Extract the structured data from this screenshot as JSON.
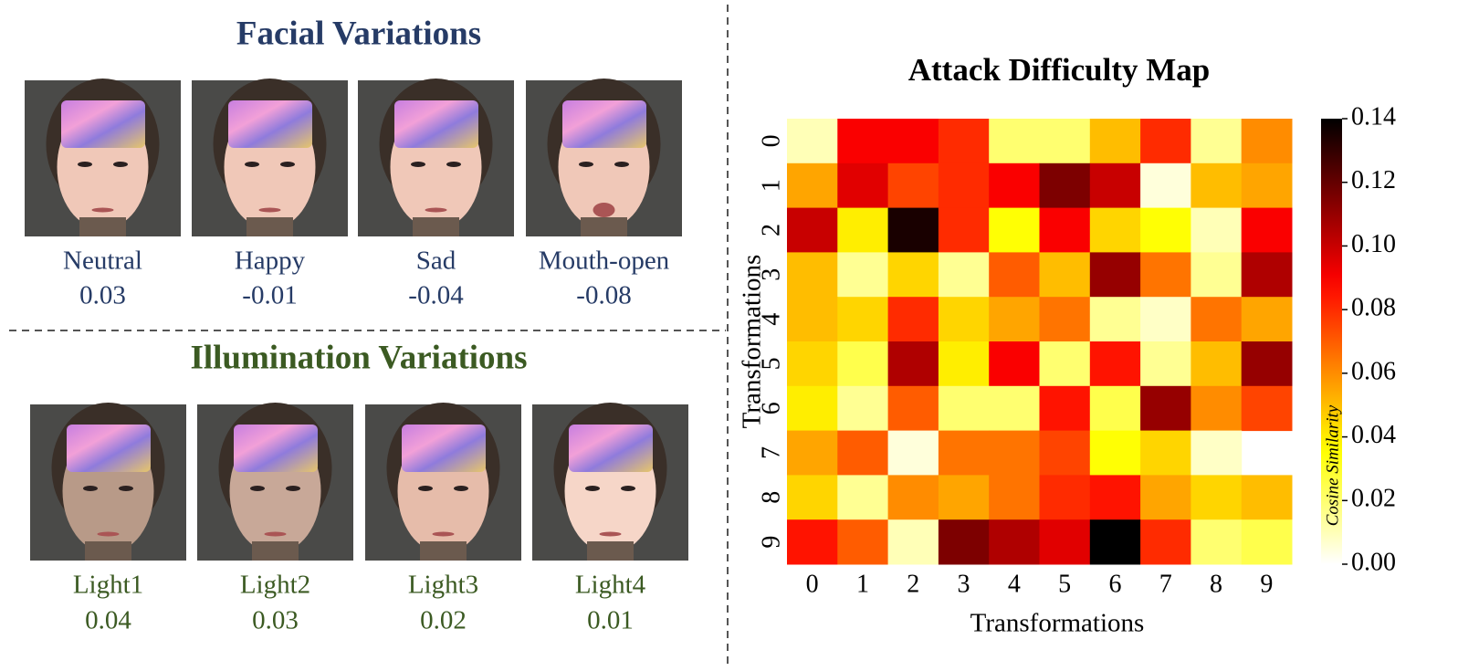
{
  "panels": [
    {
      "title": "Facial Variations",
      "color": "#263b66",
      "items": [
        {
          "label": "Neutral",
          "value": "0.03"
        },
        {
          "label": "Happy",
          "value": "-0.01"
        },
        {
          "label": "Sad",
          "value": "-0.04"
        },
        {
          "label": "Mouth-open",
          "value": "-0.08"
        }
      ]
    },
    {
      "title": "Illumination Variations",
      "color": "#3b5a22",
      "items": [
        {
          "label": "Light1",
          "value": "0.04"
        },
        {
          "label": "Light2",
          "value": "0.03"
        },
        {
          "label": "Light3",
          "value": "0.02"
        },
        {
          "label": "Light4",
          "value": "0.01"
        }
      ]
    }
  ],
  "chart_data": {
    "type": "heatmap",
    "title": "Attack Difficulty Map",
    "x_label": "Transformations",
    "y_label": "Transformations",
    "colorbar_label": "Cosine Similarity",
    "x_categories": [
      "0",
      "1",
      "2",
      "3",
      "4",
      "5",
      "6",
      "7",
      "8",
      "9"
    ],
    "y_categories": [
      "0",
      "1",
      "2",
      "3",
      "4",
      "5",
      "6",
      "7",
      "8",
      "9"
    ],
    "values": [
      [
        0.01,
        0.09,
        0.09,
        0.08,
        0.02,
        0.02,
        0.05,
        0.08,
        0.015,
        0.06
      ],
      [
        0.055,
        0.095,
        0.075,
        0.08,
        0.09,
        0.115,
        0.1,
        0.005,
        0.05,
        0.055
      ],
      [
        0.1,
        0.04,
        0.135,
        0.08,
        0.035,
        0.09,
        0.045,
        0.035,
        0.01,
        0.09
      ],
      [
        0.05,
        0.015,
        0.045,
        0.015,
        0.07,
        0.05,
        0.11,
        0.065,
        0.015,
        0.105
      ],
      [
        0.05,
        0.045,
        0.08,
        0.045,
        0.055,
        0.065,
        0.015,
        0.008,
        0.065,
        0.055
      ],
      [
        0.045,
        0.025,
        0.105,
        0.04,
        0.09,
        0.02,
        0.085,
        0.015,
        0.05,
        0.11
      ],
      [
        0.04,
        0.015,
        0.07,
        0.02,
        0.02,
        0.085,
        0.025,
        0.11,
        0.06,
        0.075
      ],
      [
        0.055,
        0.07,
        0.005,
        0.065,
        0.065,
        0.075,
        0.035,
        0.045,
        0.008,
        null
      ],
      [
        0.045,
        0.015,
        0.06,
        0.055,
        0.065,
        0.08,
        0.085,
        0.055,
        0.045,
        0.05
      ],
      [
        0.085,
        0.07,
        0.01,
        0.115,
        0.105,
        0.095,
        0.14,
        0.08,
        0.02,
        0.025
      ]
    ],
    "colormap": "hot_r",
    "clim": [
      0,
      0.14
    ],
    "cticks": [
      {
        "value": 0,
        "label": "0.00"
      },
      {
        "value": 0.02,
        "label": "0.02"
      },
      {
        "value": 0.04,
        "label": "0.04"
      },
      {
        "value": 0.06,
        "label": "0.06"
      },
      {
        "value": 0.08,
        "label": "0.08"
      },
      {
        "value": 0.1,
        "label": "0.10"
      },
      {
        "value": 0.12,
        "label": "0.12"
      },
      {
        "value": 0.14,
        "label": "0.14"
      }
    ]
  }
}
